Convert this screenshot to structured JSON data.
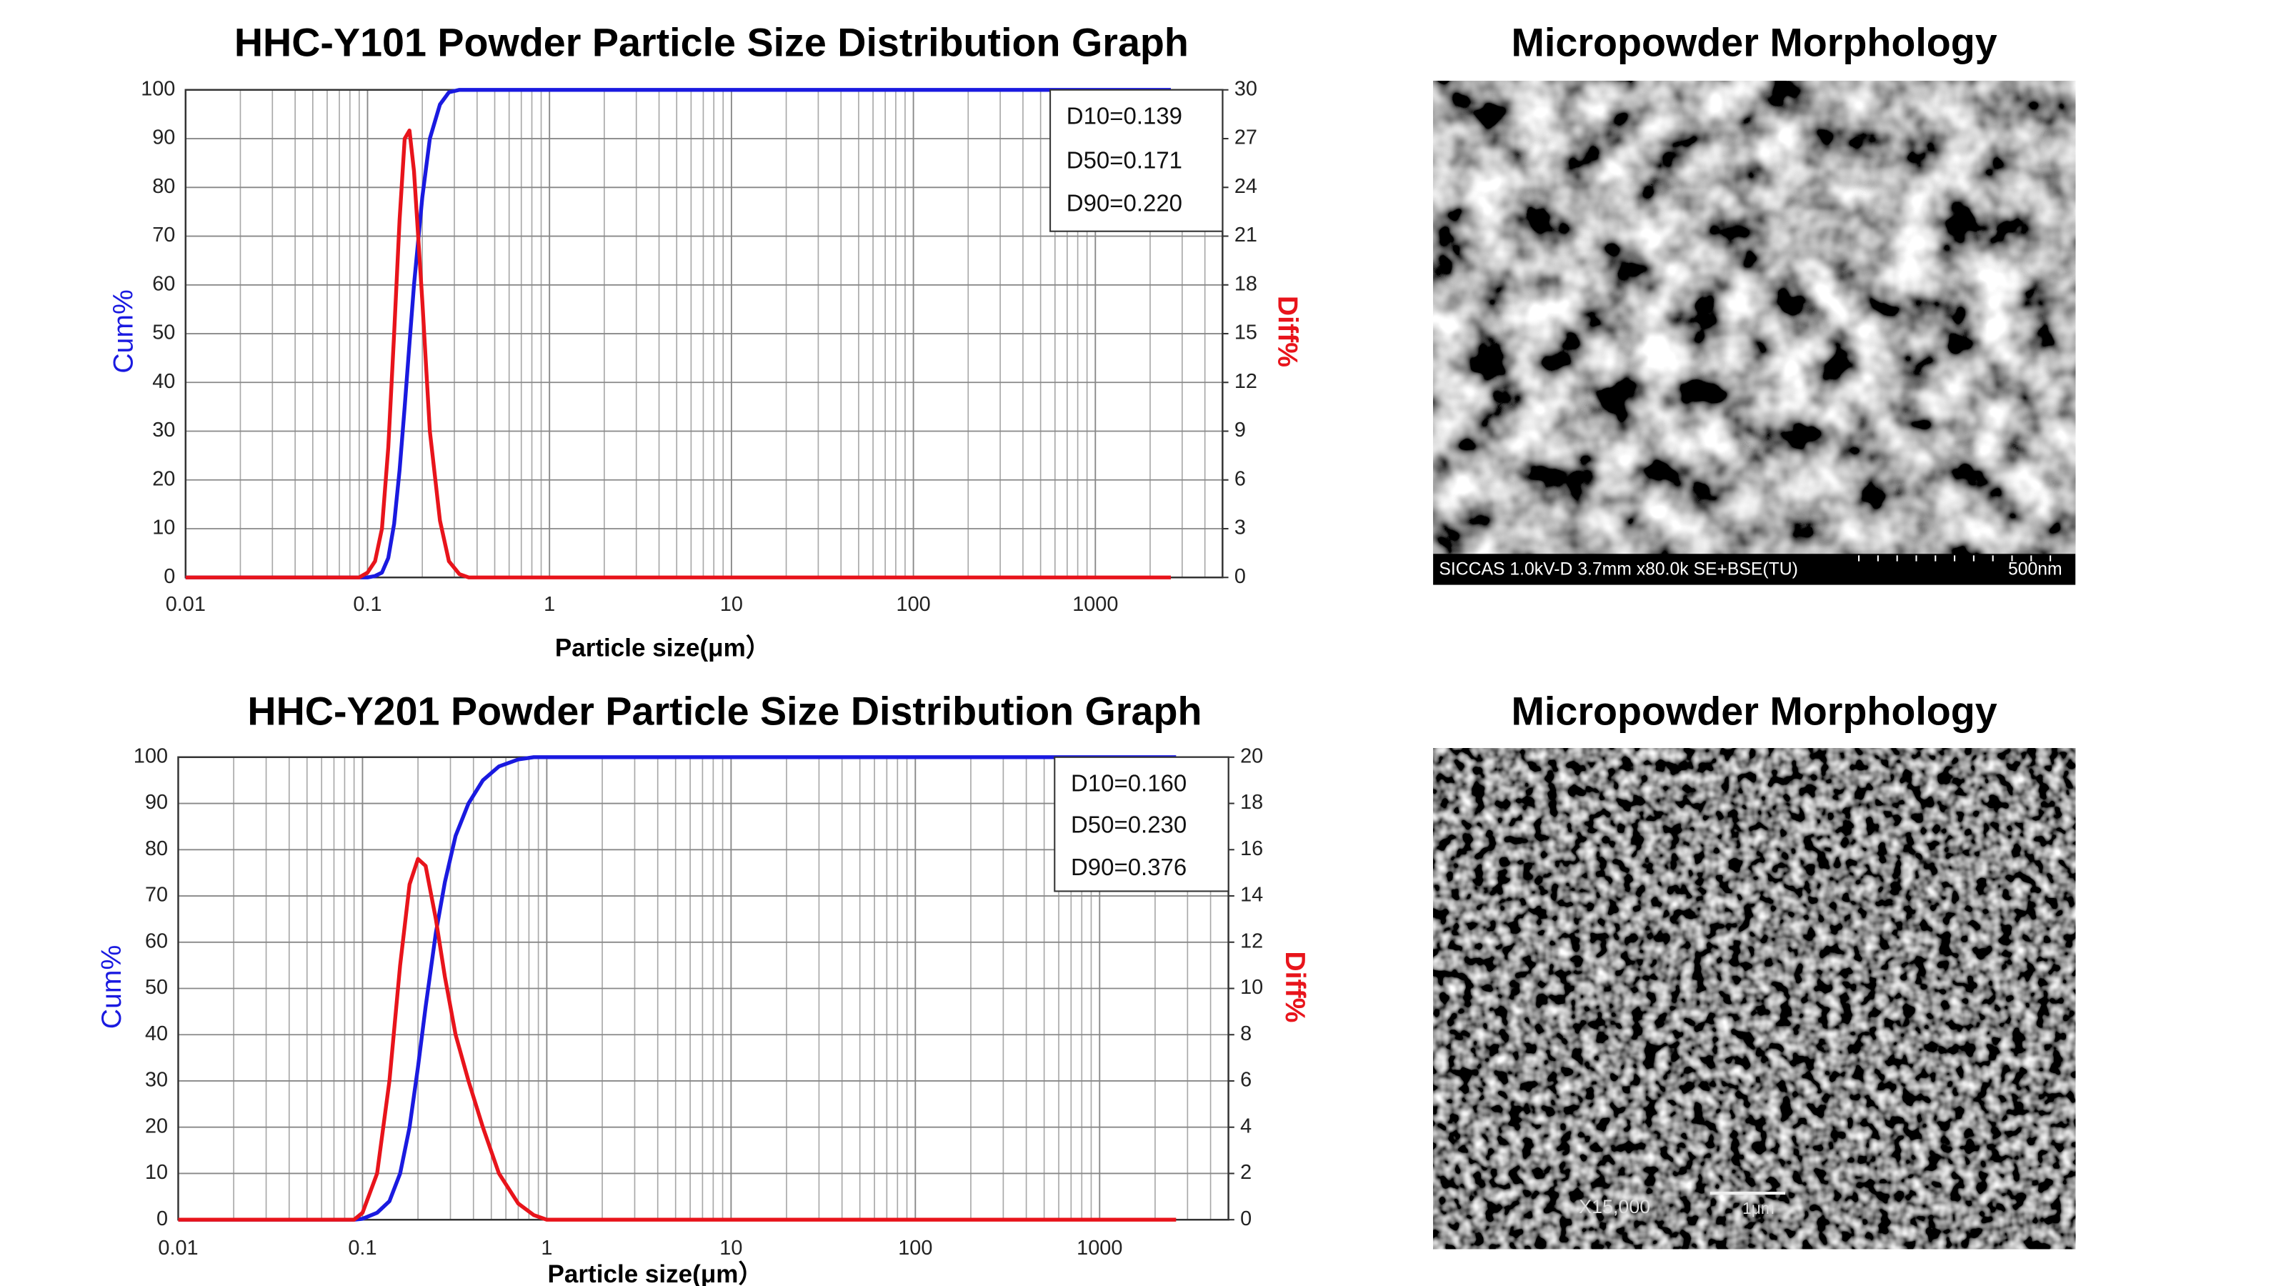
{
  "chart_data": [
    {
      "type": "line",
      "title": "HHC-Y101 Powder Particle Size Distribution Graph",
      "x_label": "Particle size(μm）",
      "y_label": "Cum%",
      "y2_label": "Diff%",
      "xscale": "log",
      "xlim": [
        0.01,
        5000
      ],
      "xticks": [
        0.01,
        0.1,
        1,
        10,
        100,
        1000
      ],
      "ylim": [
        0,
        100
      ],
      "yticks": [
        0,
        10,
        20,
        30,
        40,
        50,
        60,
        70,
        80,
        90,
        100
      ],
      "y2lim": [
        0,
        30
      ],
      "y2ticks": [
        0,
        3,
        6,
        9,
        12,
        15,
        18,
        21,
        24,
        27,
        30
      ],
      "grid": true,
      "minor_grid": true,
      "annotations": [
        "D10=0.139",
        "D50=0.171",
        "D90=0.220"
      ],
      "x": [
        0.01,
        0.09,
        0.1,
        0.11,
        0.12,
        0.13,
        0.14,
        0.15,
        0.16,
        0.17,
        0.18,
        0.2,
        0.22,
        0.25,
        0.28,
        0.32,
        0.36,
        0.45,
        1,
        10,
        100,
        1000,
        2600
      ],
      "series": [
        {
          "color": "#1a1ae0",
          "values": [
            0,
            0,
            0,
            0.3,
            1,
            4,
            11,
            22,
            35,
            48,
            60,
            78,
            90,
            97,
            99.5,
            100,
            100,
            100,
            100,
            100,
            100,
            100,
            100
          ]
        },
        {
          "color": "#e8141b",
          "axis": "y2",
          "values": [
            0,
            0,
            0.3,
            1,
            3,
            8,
            15,
            22,
            27,
            27.5,
            25,
            17,
            9,
            3.5,
            1,
            0.2,
            0,
            0,
            0,
            0,
            0,
            0,
            0
          ]
        }
      ]
    },
    {
      "type": "line",
      "title": "HHC-Y201 Powder Particle Size Distribution Graph",
      "x_label": "Particle size(μm）",
      "y_label": "Cum%",
      "y2_label": "Diff%",
      "xscale": "log",
      "xlim": [
        0.01,
        5000
      ],
      "xticks": [
        0.01,
        0.1,
        1,
        10,
        100,
        1000
      ],
      "ylim": [
        0,
        100
      ],
      "yticks": [
        0,
        10,
        20,
        30,
        40,
        50,
        60,
        70,
        80,
        90,
        100
      ],
      "y2lim": [
        0,
        20
      ],
      "y2ticks": [
        0,
        2,
        4,
        6,
        8,
        10,
        12,
        14,
        16,
        18,
        20
      ],
      "grid": true,
      "minor_grid": true,
      "annotations": [
        "D10=0.160",
        "D50=0.230",
        "D90=0.376"
      ],
      "x": [
        0.01,
        0.09,
        0.1,
        0.12,
        0.14,
        0.16,
        0.18,
        0.2,
        0.22,
        0.25,
        0.28,
        0.32,
        0.376,
        0.45,
        0.55,
        0.7,
        0.85,
        1,
        10,
        100,
        1000,
        2600
      ],
      "series": [
        {
          "color": "#1a1ae0",
          "values": [
            0,
            0,
            0.2,
            1.5,
            4,
            10,
            20,
            33,
            46,
            62,
            73,
            83,
            90,
            95,
            98,
            99.5,
            100,
            100,
            100,
            100,
            100,
            100
          ]
        },
        {
          "color": "#e8141b",
          "axis": "y2",
          "values": [
            0,
            0,
            0.3,
            2,
            6,
            11,
            14.5,
            15.6,
            15.3,
            13,
            10.5,
            8,
            6,
            4,
            2,
            0.7,
            0.2,
            0,
            0,
            0,
            0,
            0
          ]
        }
      ]
    }
  ],
  "images": [
    {
      "title": "Micropowder Morphology",
      "caption": "SICCAS 1.0kV-D 3.7mm x80.0k SE+BSE(TU)",
      "scale": "500nm"
    },
    {
      "title": "Micropowder Morphology",
      "magnification": "X15,000",
      "scale": "1μm"
    }
  ]
}
